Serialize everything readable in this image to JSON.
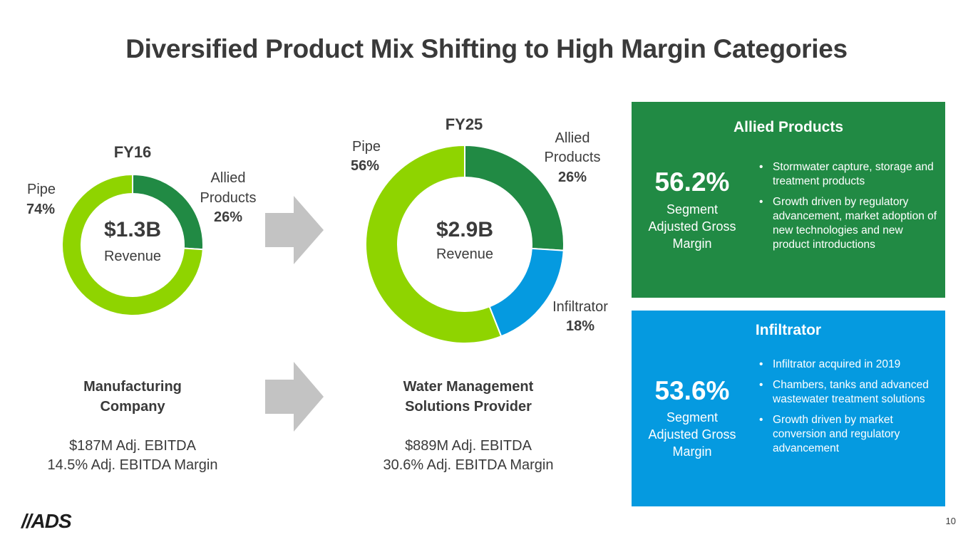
{
  "title": "Diversified Product Mix Shifting to High Margin Categories",
  "chart_data": [
    {
      "type": "pie",
      "title": "FY16",
      "center_value": "$1.3B",
      "center_label": "Revenue",
      "slices": [
        {
          "name": "Allied Products",
          "value": 26,
          "label": "26%",
          "color": "#218a44"
        },
        {
          "name": "Pipe",
          "value": 74,
          "label": "74%",
          "color": "#8fd400"
        }
      ]
    },
    {
      "type": "pie",
      "title": "FY25",
      "center_value": "$2.9B",
      "center_label": "Revenue",
      "slices": [
        {
          "name": "Allied Products",
          "value": 26,
          "label": "26%",
          "color": "#218a44"
        },
        {
          "name": "Infiltrator",
          "value": 18,
          "label": "18%",
          "color": "#059ae0"
        },
        {
          "name": "Pipe",
          "value": 56,
          "label": "56%",
          "color": "#8fd400"
        }
      ]
    }
  ],
  "fy16": {
    "pipe_label": "Pipe",
    "pipe_pct": "74%",
    "allied_label_1": "Allied",
    "allied_label_2": "Products",
    "allied_pct": "26%",
    "caption_1": "Manufacturing",
    "caption_2": "Company",
    "ebitda": "$187M Adj. EBITDA",
    "margin": "14.5% Adj. EBITDA Margin"
  },
  "fy25": {
    "pipe_label": "Pipe",
    "pipe_pct": "56%",
    "allied_label_1": "Allied",
    "allied_label_2": "Products",
    "allied_pct": "26%",
    "infiltrator_label": "Infiltrator",
    "infiltrator_pct": "18%",
    "caption_1": "Water Management",
    "caption_2": "Solutions Provider",
    "ebitda": "$889M Adj. EBITDA",
    "margin": "30.6% Adj. EBITDA Margin"
  },
  "panels": {
    "allied": {
      "title": "Allied Products",
      "pct": "56.2%",
      "label_1": "Segment",
      "label_2": "Adjusted Gross",
      "label_3": "Margin",
      "bullets": [
        "Stormwater capture, storage and treatment products",
        "Growth driven by regulatory advancement, market adoption of new technologies and new product introductions"
      ],
      "color": "#218a44"
    },
    "infiltrator": {
      "title": "Infiltrator",
      "pct": "53.6%",
      "label_1": "Segment",
      "label_2": "Adjusted Gross",
      "label_3": "Margin",
      "bullets": [
        "Infiltrator acquired in 2019",
        "Chambers, tanks and advanced wastewater treatment solutions",
        "Growth driven by market conversion and regulatory advancement"
      ],
      "color": "#059ae0"
    }
  },
  "footer": {
    "logo": "//ADS",
    "page_number": "10"
  }
}
